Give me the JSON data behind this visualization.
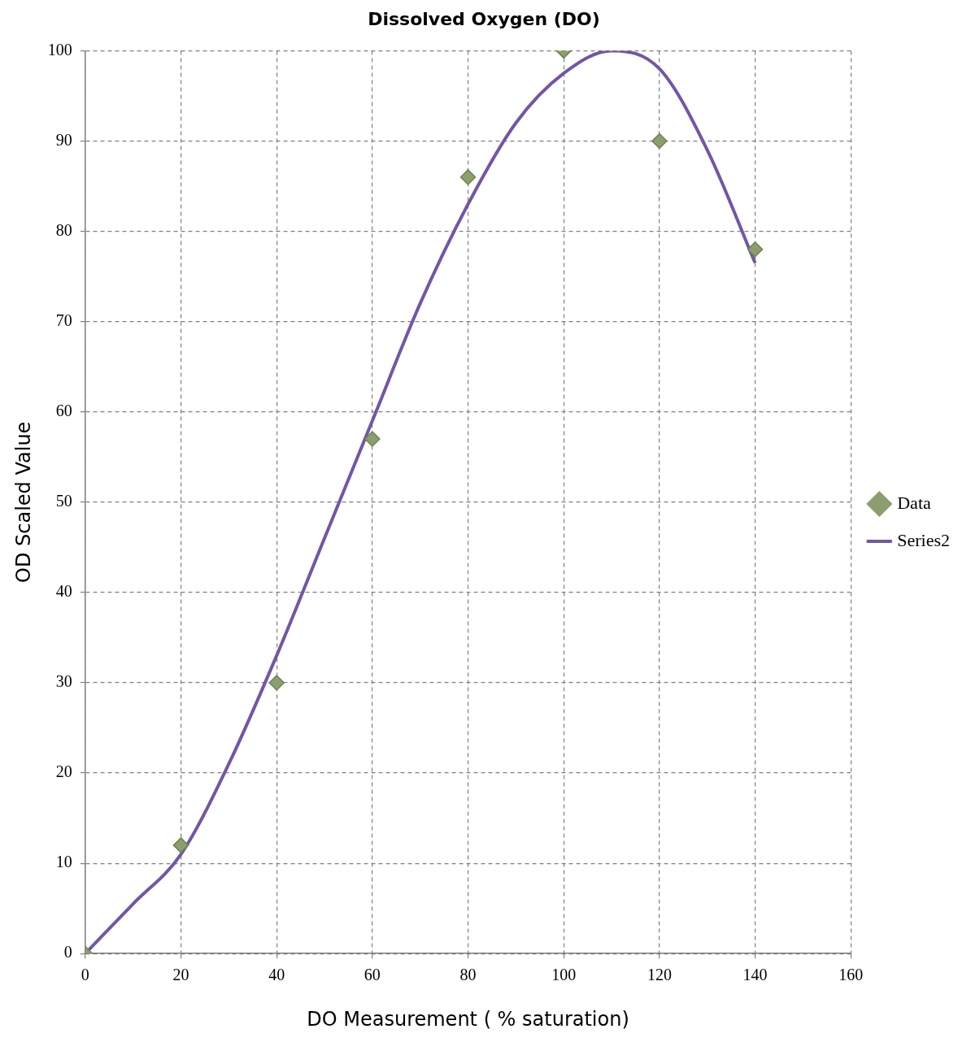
{
  "chart_data": {
    "type": "scatter",
    "title": "Dissolved Oxygen (DO)",
    "xlabel": "DO Measurement ( % saturation)",
    "ylabel": "OD Scaled Value",
    "series": [
      {
        "name": "Data",
        "color": "#8c9e6e",
        "marker": "diamond",
        "x": [
          0,
          20,
          40,
          60,
          80,
          100,
          120,
          140
        ],
        "values": [
          0,
          12,
          30,
          57,
          86,
          100,
          90,
          78
        ]
      },
      {
        "name": "Series2",
        "type": "line",
        "color": "#7356a6",
        "marker": "none",
        "x": [
          0,
          10,
          20,
          30,
          40,
          50,
          60,
          70,
          80,
          90,
          100,
          110,
          120,
          130,
          140
        ],
        "values": [
          0,
          5.5,
          11,
          21,
          33,
          46,
          59,
          72,
          83,
          92,
          97.5,
          100,
          98,
          89,
          76.5
        ]
      }
    ],
    "xlim": [
      0,
      160
    ],
    "xticks": [
      0,
      20,
      40,
      60,
      80,
      100,
      120,
      140,
      160
    ],
    "ylim": [
      0,
      100
    ],
    "yticks": [
      0,
      10,
      20,
      30,
      40,
      50,
      60,
      70,
      80,
      90,
      100
    ],
    "grid": true,
    "legend": "right"
  }
}
